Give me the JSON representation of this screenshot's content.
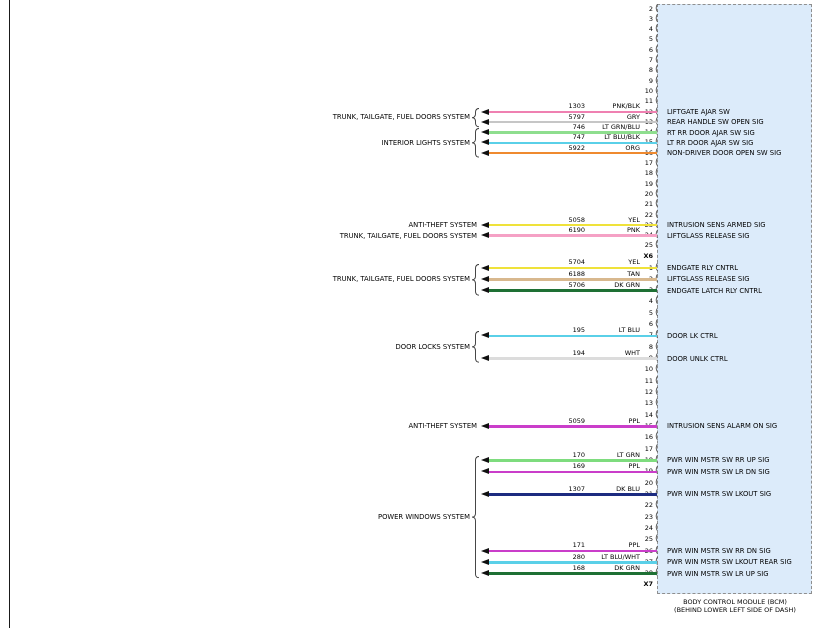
{
  "module": {
    "caption_line1": "BODY CONTROL MODULE (BCM)",
    "caption_line2": "(BEHIND LOWER LEFT SIDE OF DASH)",
    "fill": "#dcebfa",
    "border": "#8f8f8f"
  },
  "icons": {
    "pin_cavity": "("
  },
  "connectors": [
    {
      "id": "X6",
      "pins": [
        {
          "n": "2"
        },
        {
          "n": "3"
        },
        {
          "n": "4"
        },
        {
          "n": "5"
        },
        {
          "n": "6"
        },
        {
          "n": "7"
        },
        {
          "n": "8"
        },
        {
          "n": "9"
        },
        {
          "n": "10"
        },
        {
          "n": "11"
        },
        {
          "n": "12",
          "circuit": "1303",
          "color": "PNK/BLK",
          "hex": "#ef80b1",
          "signal": "LIFTGATE AJAR SW"
        },
        {
          "n": "13",
          "circuit": "5797",
          "color": "GRY",
          "hex": "#c6c6c6",
          "signal": "REAR HANDLE SW OPEN SIG"
        },
        {
          "n": "14",
          "circuit": "746",
          "color": "LT GRN/BLU",
          "hex": "#8ede8e",
          "signal": "RT RR DOOR AJAR SW SIG"
        },
        {
          "n": "15",
          "circuit": "747",
          "color": "LT BLU/BLK",
          "hex": "#5ad0e8",
          "signal": "LT RR DOOR AJAR SW SIG"
        },
        {
          "n": "16",
          "circuit": "5922",
          "color": "ORG",
          "hex": "#ef8a2f",
          "signal": "NON-DRIVER DOOR OPEN SW SIG"
        },
        {
          "n": "17"
        },
        {
          "n": "18"
        },
        {
          "n": "19"
        },
        {
          "n": "20"
        },
        {
          "n": "21"
        },
        {
          "n": "22"
        },
        {
          "n": "23",
          "circuit": "5058",
          "color": "YEL",
          "hex": "#efe23a",
          "signal": "INTRUSION SENS ARMED SIG"
        },
        {
          "n": "24",
          "circuit": "6190",
          "color": "PNK",
          "hex": "#f5a1c5",
          "signal": "LIFTGLASS RELEASE SIG"
        },
        {
          "n": "25"
        }
      ]
    },
    {
      "id": "X7",
      "pins": [
        {
          "n": "1",
          "circuit": "5704",
          "color": "YEL",
          "hex": "#efe23a",
          "signal": "ENDGATE RLY CNTRL"
        },
        {
          "n": "2",
          "circuit": "6188",
          "color": "TAN",
          "hex": "#d8b88e",
          "signal": "LIFTGLASS RELEASE SIG"
        },
        {
          "n": "3",
          "circuit": "5706",
          "color": "DK GRN",
          "hex": "#1e7034",
          "signal": "ENDGATE LATCH RLY CNTRL"
        },
        {
          "n": "4"
        },
        {
          "n": "5"
        },
        {
          "n": "6"
        },
        {
          "n": "7",
          "circuit": "195",
          "color": "LT BLU",
          "hex": "#5ad0e8",
          "signal": "DOOR LK CTRL"
        },
        {
          "n": "8"
        },
        {
          "n": "9",
          "circuit": "194",
          "color": "WHT",
          "hex": "#dcdcdc",
          "signal": "DOOR UNLK CTRL"
        },
        {
          "n": "10"
        },
        {
          "n": "11"
        },
        {
          "n": "12"
        },
        {
          "n": "13"
        },
        {
          "n": "14"
        },
        {
          "n": "15",
          "circuit": "5059",
          "color": "PPL",
          "hex": "#ca3eca",
          "signal": "INTRUSION SENS ALARM ON SIG"
        },
        {
          "n": "16"
        },
        {
          "n": "17"
        },
        {
          "n": "18",
          "circuit": "170",
          "color": "LT GRN",
          "hex": "#7edc7e",
          "signal": "PWR WIN MSTR SW RR UP SIG"
        },
        {
          "n": "19",
          "circuit": "169",
          "color": "PPL",
          "hex": "#ca3eca",
          "signal": "PWR WIN MSTR SW LR DN SIG"
        },
        {
          "n": "20"
        },
        {
          "n": "21",
          "circuit": "1307",
          "color": "DK BLU",
          "hex": "#1c2b80",
          "signal": "PWR WIN MSTR SW LKOUT SIG"
        },
        {
          "n": "22"
        },
        {
          "n": "23"
        },
        {
          "n": "24"
        },
        {
          "n": "25"
        },
        {
          "n": "26",
          "circuit": "171",
          "color": "PPL",
          "hex": "#ca3eca",
          "signal": "PWR WIN MSTR SW RR DN SIG"
        },
        {
          "n": "27",
          "circuit": "280",
          "color": "LT BLU/WHT",
          "hex": "#5ad0e8",
          "signal": "PWR WIN MSTR SW LKOUT REAR SIG"
        },
        {
          "n": "28",
          "circuit": "168",
          "color": "DK GRN",
          "hex": "#1e7034",
          "signal": "PWR WIN MSTR SW LR UP SIG"
        }
      ]
    }
  ],
  "system_groups": [
    {
      "label": "TRUNK, TAILGATE, FUEL DOORS SYSTEM",
      "connector": "X6",
      "pins": [
        "12",
        "13"
      ]
    },
    {
      "label": "INTERIOR LIGHTS SYSTEM",
      "connector": "X6",
      "pins": [
        "14",
        "15",
        "16"
      ]
    },
    {
      "label": "ANTI-THEFT SYSTEM",
      "connector": "X6",
      "pins": [
        "23"
      ]
    },
    {
      "label": "TRUNK, TAILGATE, FUEL DOORS SYSTEM",
      "connector": "X6",
      "pins": [
        "24"
      ]
    },
    {
      "label": "TRUNK, TAILGATE, FUEL DOORS SYSTEM",
      "connector": "X7",
      "pins": [
        "1",
        "2",
        "3"
      ]
    },
    {
      "label": "DOOR LOCKS SYSTEM",
      "connector": "X7",
      "pins": [
        "7",
        "9"
      ]
    },
    {
      "label": "ANTI-THEFT SYSTEM",
      "connector": "X7",
      "pins": [
        "15"
      ]
    },
    {
      "label": "POWER WINDOWS SYSTEM",
      "connector": "X7",
      "pins": [
        "18",
        "19",
        "21",
        "26",
        "27",
        "28"
      ]
    }
  ]
}
